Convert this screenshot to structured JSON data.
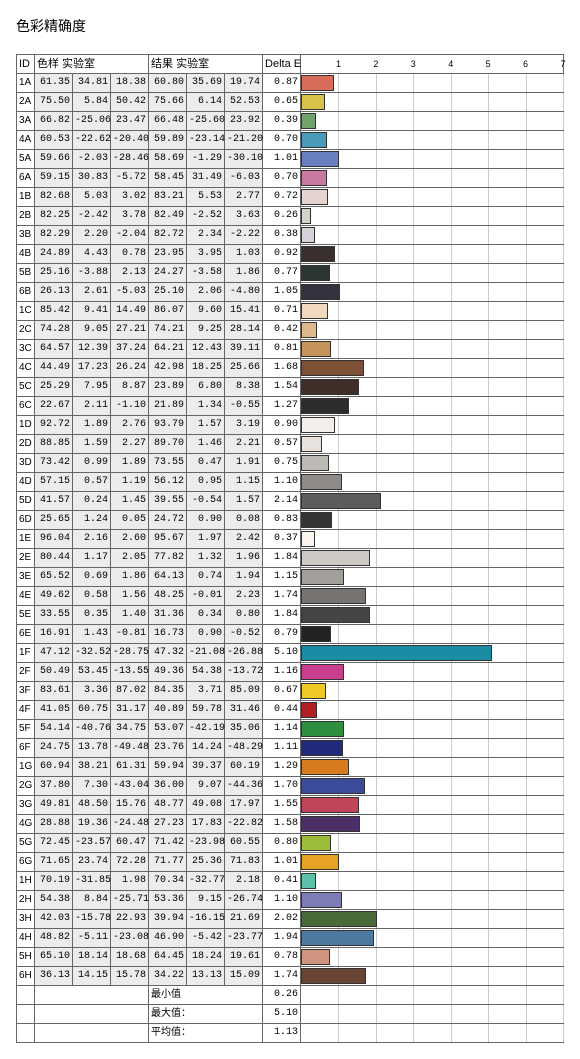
{
  "title": "色彩精确度",
  "headers": {
    "id": "ID",
    "sample": "色样 实验室",
    "result": "结果 实验室",
    "delta": "Delta E"
  },
  "axis": {
    "max": 7,
    "ticks": [
      1,
      2,
      3,
      4,
      5,
      6,
      7
    ]
  },
  "grid_color": "#cccccc",
  "border_color": "#666666",
  "shade_bg": "#ececec",
  "rows": [
    {
      "id": "1A",
      "s": [
        61.35,
        34.81,
        18.38
      ],
      "r": [
        60.8,
        35.69,
        19.74
      ],
      "de": 0.87,
      "c": "#d96b5a"
    },
    {
      "id": "2A",
      "s": [
        75.5,
        5.84,
        50.42
      ],
      "r": [
        75.66,
        6.14,
        52.53
      ],
      "de": 0.65,
      "c": "#d8c24a"
    },
    {
      "id": "3A",
      "s": [
        66.82,
        -25.06,
        23.47
      ],
      "r": [
        66.48,
        -25.6,
        23.92
      ],
      "de": 0.39,
      "c": "#6fa36b"
    },
    {
      "id": "4A",
      "s": [
        60.53,
        -22.62,
        -20.4
      ],
      "r": [
        59.89,
        -23.14,
        -21.2
      ],
      "de": 0.7,
      "c": "#4a9bb8"
    },
    {
      "id": "5A",
      "s": [
        59.66,
        -2.03,
        -28.46
      ],
      "r": [
        58.69,
        -1.29,
        -30.1
      ],
      "de": 1.01,
      "c": "#6a7fc0"
    },
    {
      "id": "6A",
      "s": [
        59.15,
        30.83,
        -5.72
      ],
      "r": [
        58.45,
        31.49,
        -6.03
      ],
      "de": 0.7,
      "c": "#c87aa3"
    },
    {
      "id": "1B",
      "s": [
        82.68,
        5.03,
        3.02
      ],
      "r": [
        83.21,
        5.53,
        2.77
      ],
      "de": 0.72,
      "c": "#e3d4cf"
    },
    {
      "id": "2B",
      "s": [
        82.25,
        -2.42,
        3.78
      ],
      "r": [
        82.49,
        -2.52,
        3.63
      ],
      "de": 0.26,
      "c": "#cfd6c9"
    },
    {
      "id": "3B",
      "s": [
        82.29,
        2.2,
        -2.04
      ],
      "r": [
        82.72,
        2.34,
        -2.22
      ],
      "de": 0.38,
      "c": "#d7d2da"
    },
    {
      "id": "4B",
      "s": [
        24.89,
        4.43,
        0.78
      ],
      "r": [
        23.95,
        3.95,
        1.03
      ],
      "de": 0.92,
      "c": "#3a2f2e"
    },
    {
      "id": "5B",
      "s": [
        25.16,
        -3.88,
        2.13
      ],
      "r": [
        24.27,
        -3.58,
        1.86
      ],
      "de": 0.77,
      "c": "#2c3630"
    },
    {
      "id": "6B",
      "s": [
        26.13,
        2.61,
        -5.03
      ],
      "r": [
        25.1,
        2.06,
        -4.8
      ],
      "de": 1.05,
      "c": "#34323e"
    },
    {
      "id": "1C",
      "s": [
        85.42,
        9.41,
        14.49
      ],
      "r": [
        86.07,
        9.6,
        15.41
      ],
      "de": 0.71,
      "c": "#f1d9c0"
    },
    {
      "id": "2C",
      "s": [
        74.28,
        9.05,
        27.21
      ],
      "r": [
        74.21,
        9.25,
        28.14
      ],
      "de": 0.42,
      "c": "#dcb88a"
    },
    {
      "id": "3C",
      "s": [
        64.57,
        12.39,
        37.24
      ],
      "r": [
        64.21,
        12.43,
        39.11
      ],
      "de": 0.81,
      "c": "#c4945a"
    },
    {
      "id": "4C",
      "s": [
        44.49,
        17.23,
        26.24
      ],
      "r": [
        42.98,
        18.25,
        25.66
      ],
      "de": 1.68,
      "c": "#7d4f35"
    },
    {
      "id": "5C",
      "s": [
        25.29,
        7.95,
        8.87
      ],
      "r": [
        23.89,
        6.8,
        8.38
      ],
      "de": 1.54,
      "c": "#3f2e27"
    },
    {
      "id": "6C",
      "s": [
        22.67,
        2.11,
        -1.1
      ],
      "r": [
        21.89,
        1.34,
        -0.55
      ],
      "de": 1.27,
      "c": "#2f2c30"
    },
    {
      "id": "1D",
      "s": [
        92.72,
        1.89,
        2.76
      ],
      "r": [
        93.79,
        1.57,
        3.19
      ],
      "de": 0.9,
      "c": "#f3eee9"
    },
    {
      "id": "2D",
      "s": [
        88.85,
        1.59,
        2.27
      ],
      "r": [
        89.7,
        1.46,
        2.21
      ],
      "de": 0.57,
      "c": "#e7e2de"
    },
    {
      "id": "3D",
      "s": [
        73.42,
        0.99,
        1.89
      ],
      "r": [
        73.55,
        0.47,
        1.91
      ],
      "de": 0.75,
      "c": "#bcb8b4"
    },
    {
      "id": "4D",
      "s": [
        57.15,
        0.57,
        1.19
      ],
      "r": [
        56.12,
        0.95,
        1.15
      ],
      "de": 1.1,
      "c": "#8d8a87"
    },
    {
      "id": "5D",
      "s": [
        41.57,
        0.24,
        1.45
      ],
      "r": [
        39.55,
        -0.54,
        1.57
      ],
      "de": 2.14,
      "c": "#5e5c5a"
    },
    {
      "id": "6D",
      "s": [
        25.65,
        1.24,
        0.05
      ],
      "r": [
        24.72,
        0.9,
        0.08
      ],
      "de": 0.83,
      "c": "#353334"
    },
    {
      "id": "1E",
      "s": [
        96.04,
        2.16,
        2.6
      ],
      "r": [
        95.67,
        1.97,
        2.42
      ],
      "de": 0.37,
      "c": "#faf4ef"
    },
    {
      "id": "2E",
      "s": [
        80.44,
        1.17,
        2.05
      ],
      "r": [
        77.82,
        1.32,
        1.96
      ],
      "de": 1.84,
      "c": "#cdc9c5"
    },
    {
      "id": "3E",
      "s": [
        65.52,
        0.69,
        1.86
      ],
      "r": [
        64.13,
        0.74,
        1.94
      ],
      "de": 1.15,
      "c": "#a29f9b"
    },
    {
      "id": "4E",
      "s": [
        49.62,
        0.58,
        1.56
      ],
      "r": [
        48.25,
        -0.01,
        2.23
      ],
      "de": 1.74,
      "c": "#767370"
    },
    {
      "id": "5E",
      "s": [
        33.55,
        0.35,
        1.4
      ],
      "r": [
        31.36,
        0.34,
        0.8
      ],
      "de": 1.84,
      "c": "#474543"
    },
    {
      "id": "6E",
      "s": [
        16.91,
        1.43,
        -0.81
      ],
      "r": [
        16.73,
        0.9,
        -0.52
      ],
      "de": 0.79,
      "c": "#232225"
    },
    {
      "id": "1F",
      "s": [
        47.12,
        -32.52,
        -28.75
      ],
      "r": [
        47.32,
        -21.08,
        -26.88
      ],
      "de": 5.1,
      "c": "#1a8ca3"
    },
    {
      "id": "2F",
      "s": [
        50.49,
        53.45,
        -13.55
      ],
      "r": [
        49.36,
        54.38,
        -13.72
      ],
      "de": 1.16,
      "c": "#c93f8e"
    },
    {
      "id": "3F",
      "s": [
        83.61,
        3.36,
        87.02
      ],
      "r": [
        84.35,
        3.71,
        85.09
      ],
      "de": 0.67,
      "c": "#eec926"
    },
    {
      "id": "4F",
      "s": [
        41.05,
        60.75,
        31.17
      ],
      "r": [
        40.89,
        59.78,
        31.46
      ],
      "de": 0.44,
      "c": "#b12124"
    },
    {
      "id": "5F",
      "s": [
        54.14,
        -40.76,
        34.75
      ],
      "r": [
        53.07,
        -42.19,
        35.06
      ],
      "de": 1.14,
      "c": "#2e8f3e"
    },
    {
      "id": "6F",
      "s": [
        24.75,
        13.78,
        -49.48
      ],
      "r": [
        23.76,
        14.24,
        -48.29
      ],
      "de": 1.11,
      "c": "#22297a"
    },
    {
      "id": "1G",
      "s": [
        60.94,
        38.21,
        61.31
      ],
      "r": [
        59.94,
        39.37,
        60.19
      ],
      "de": 1.29,
      "c": "#d87a1f"
    },
    {
      "id": "2G",
      "s": [
        37.8,
        7.3,
        -43.04
      ],
      "r": [
        36.0,
        9.07,
        -44.36
      ],
      "de": 1.7,
      "c": "#3c4b9a"
    },
    {
      "id": "3G",
      "s": [
        49.81,
        48.5,
        15.76
      ],
      "r": [
        48.77,
        49.08,
        17.97
      ],
      "de": 1.55,
      "c": "#c0455a"
    },
    {
      "id": "4G",
      "s": [
        28.88,
        19.36,
        -24.48
      ],
      "r": [
        27.23,
        17.83,
        -22.82
      ],
      "de": 1.58,
      "c": "#4b2f66"
    },
    {
      "id": "5G",
      "s": [
        72.45,
        -23.57,
        60.47
      ],
      "r": [
        71.42,
        -23.98,
        60.55
      ],
      "de": 0.8,
      "c": "#9bbd3a"
    },
    {
      "id": "6G",
      "s": [
        71.65,
        23.74,
        72.28
      ],
      "r": [
        71.77,
        25.36,
        71.83
      ],
      "de": 1.01,
      "c": "#e6a326"
    },
    {
      "id": "1H",
      "s": [
        70.19,
        -31.85,
        1.98
      ],
      "r": [
        70.34,
        -32.77,
        2.18
      ],
      "de": 0.41,
      "c": "#5cc0a8"
    },
    {
      "id": "2H",
      "s": [
        54.38,
        8.84,
        -25.71
      ],
      "r": [
        53.36,
        9.15,
        -26.74
      ],
      "de": 1.1,
      "c": "#7b7db4"
    },
    {
      "id": "3H",
      "s": [
        42.03,
        -15.78,
        22.93
      ],
      "r": [
        39.94,
        -16.15,
        21.69
      ],
      "de": 2.02,
      "c": "#4a6a3a"
    },
    {
      "id": "4H",
      "s": [
        48.82,
        -5.11,
        -23.08
      ],
      "r": [
        46.9,
        -5.42,
        -23.77
      ],
      "de": 1.94,
      "c": "#4f7aa0"
    },
    {
      "id": "5H",
      "s": [
        65.1,
        18.14,
        18.68
      ],
      "r": [
        64.45,
        18.24,
        19.61
      ],
      "de": 0.78,
      "c": "#cf9580"
    },
    {
      "id": "6H",
      "s": [
        36.13,
        14.15,
        15.78
      ],
      "r": [
        34.22,
        13.13,
        15.09
      ],
      "de": 1.74,
      "c": "#6a4535"
    }
  ],
  "summary": [
    {
      "label": "最小值",
      "value": 0.26
    },
    {
      "label": "最大值：",
      "value": 5.1
    },
    {
      "label": "平均值：",
      "value": 1.13
    }
  ]
}
